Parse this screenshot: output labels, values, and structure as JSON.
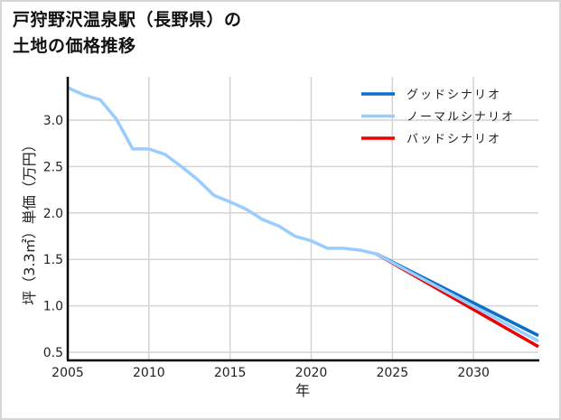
{
  "title": {
    "line1": "戸狩野沢温泉駅（長野県）の",
    "line2": "土地の価格推移"
  },
  "axes": {
    "xlabel": "年",
    "ylabel": "坪（3.3㎡）単価（万円）",
    "xticks": [
      "2005",
      "2010",
      "2015",
      "2020",
      "2025",
      "2030"
    ],
    "yticks": [
      "0.5",
      "1.0",
      "1.5",
      "2.0",
      "2.5",
      "3.0"
    ]
  },
  "legend": {
    "items": [
      {
        "label": "グッドシナリオ",
        "color": "#0a6fc9"
      },
      {
        "label": "ノーマルシナリオ",
        "color": "#99ccff"
      },
      {
        "label": "バッドシナリオ",
        "color": "#ee0000"
      }
    ]
  },
  "chart_data": {
    "type": "line",
    "title": "戸狩野沢温泉駅（長野県）の土地の価格推移",
    "xlabel": "年",
    "ylabel": "坪（3.3㎡）単価（万円）",
    "xlim": [
      2005,
      2034
    ],
    "ylim": [
      0.45,
      3.45
    ],
    "grid": true,
    "legend_position": "upper right",
    "series": [
      {
        "name": "ノーマルシナリオ",
        "color": "#99ccff",
        "x": [
          2005,
          2006,
          2007,
          2008,
          2009,
          2010,
          2011,
          2012,
          2013,
          2014,
          2015,
          2016,
          2017,
          2018,
          2019,
          2020,
          2021,
          2022,
          2023,
          2024,
          2034
        ],
        "values": [
          3.35,
          3.27,
          3.22,
          3.01,
          2.69,
          2.69,
          2.63,
          2.5,
          2.36,
          2.19,
          2.12,
          2.04,
          1.93,
          1.86,
          1.75,
          1.7,
          1.62,
          1.62,
          1.6,
          1.56,
          0.62
        ]
      },
      {
        "name": "グッドシナリオ",
        "color": "#0a6fc9",
        "x": [
          2024,
          2034
        ],
        "values": [
          1.56,
          0.68
        ]
      },
      {
        "name": "バッドシナリオ",
        "color": "#ee0000",
        "x": [
          2024,
          2034
        ],
        "values": [
          1.56,
          0.56
        ]
      }
    ]
  }
}
